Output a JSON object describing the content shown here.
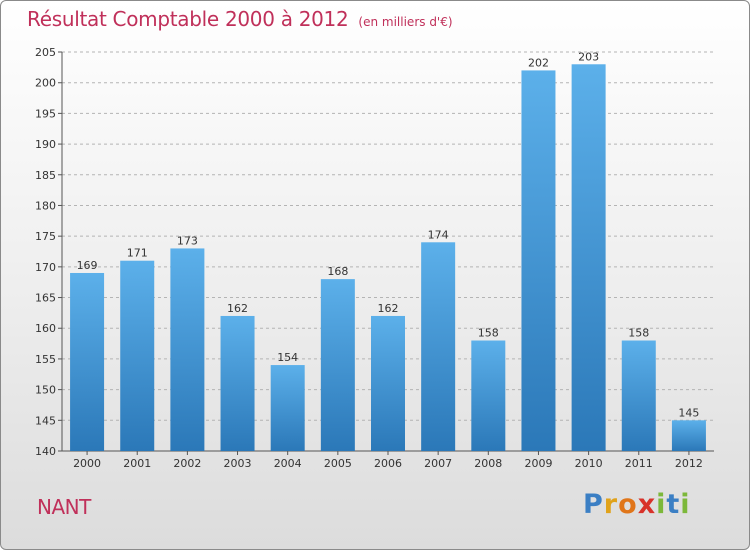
{
  "chart_data": {
    "type": "bar",
    "title": "Résultat Comptable 2000 à 2012",
    "unit_note": "(en milliers d'€)",
    "categories": [
      "2000",
      "2001",
      "2002",
      "2003",
      "2004",
      "2005",
      "2006",
      "2007",
      "2008",
      "2009",
      "2010",
      "2011",
      "2012"
    ],
    "values": [
      169,
      171,
      173,
      162,
      154,
      168,
      162,
      174,
      158,
      202,
      203,
      158,
      145
    ],
    "ylim": [
      140,
      205
    ],
    "yticks": [
      140,
      145,
      150,
      155,
      160,
      165,
      170,
      175,
      180,
      185,
      190,
      195,
      200,
      205
    ],
    "grid": true,
    "bar_color": "#4a9edc"
  },
  "commune": "NANT",
  "logo": {
    "letters": [
      "P",
      "r",
      "o",
      "x",
      "i",
      "t",
      "i"
    ],
    "colors": [
      "#3b7fc4",
      "#e0a21a",
      "#e0761a",
      "#d8322a",
      "#7cb83a",
      "#3b7fc4",
      "#7cb83a"
    ]
  }
}
